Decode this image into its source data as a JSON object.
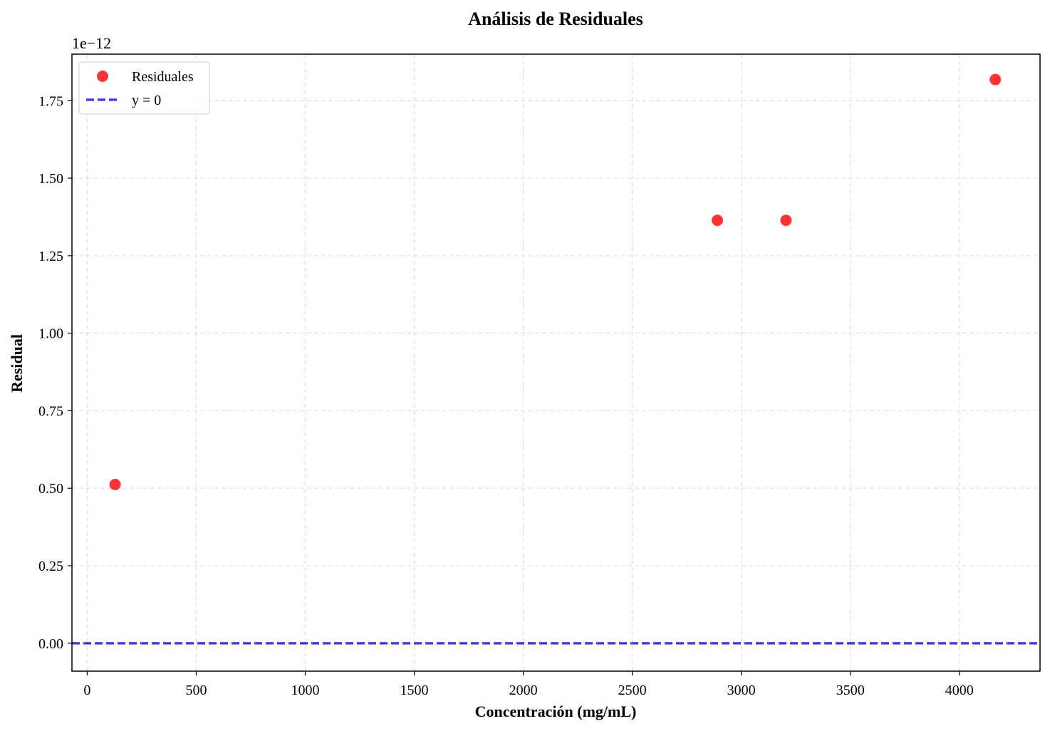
{
  "chart_data": {
    "type": "scatter",
    "title": "Análisis de Residuales",
    "xlabel": "Concentración (mg/mL)",
    "ylabel": "Residual",
    "offset_text": "1e−12",
    "xlim": [
      -70,
      4370
    ],
    "ylim": [
      -0.09,
      1.9
    ],
    "x_ticks": [
      0,
      500,
      1000,
      1500,
      2000,
      2500,
      3000,
      3500,
      4000
    ],
    "x_tick_labels": [
      "0",
      "500",
      "1000",
      "1500",
      "2000",
      "2500",
      "3000",
      "3500",
      "4000"
    ],
    "y_ticks": [
      0.0,
      0.25,
      0.5,
      0.75,
      1.0,
      1.25,
      1.5,
      1.75
    ],
    "y_tick_labels": [
      "0.00",
      "0.25",
      "0.50",
      "0.75",
      "1.00",
      "1.25",
      "1.50",
      "1.75"
    ],
    "grid": true,
    "legend_position": "top-left",
    "series": [
      {
        "name": "Residuales",
        "kind": "scatter",
        "color": "#ff0000",
        "x": [
          128,
          2890,
          3205,
          4165
        ],
        "y": [
          0.512,
          1.364,
          1.364,
          1.818
        ]
      },
      {
        "name": "y = 0",
        "kind": "hline",
        "color": "#0000ee",
        "y": 0
      }
    ]
  }
}
